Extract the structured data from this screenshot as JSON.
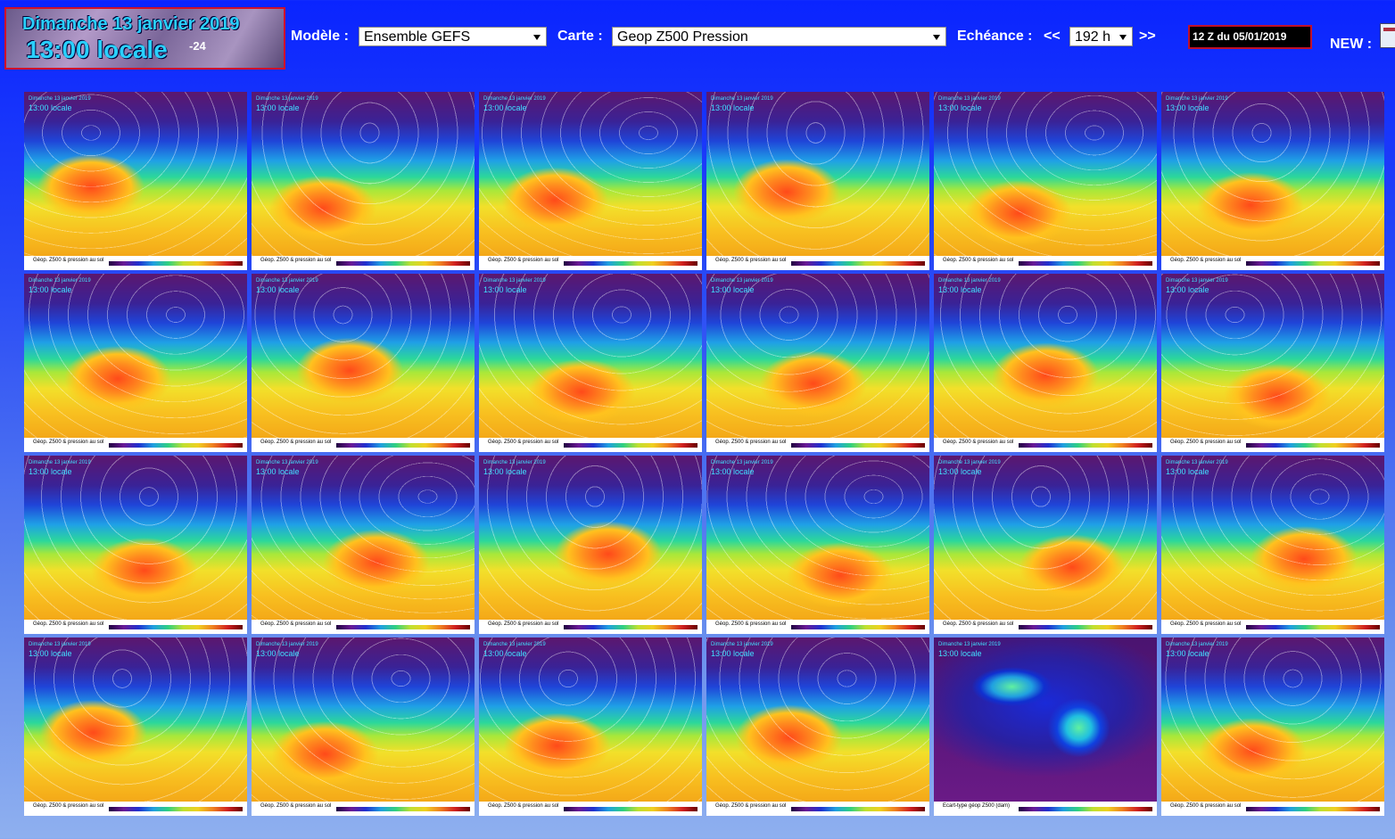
{
  "header": {
    "banner": {
      "date": "Dimanche 13 janvier 2019",
      "time": "13:00 locale",
      "offset": "-24"
    },
    "model_label": "Modèle :",
    "model_value": "Ensemble GEFS",
    "map_label": "Carte :",
    "map_value": "Geop Z500 Pression",
    "step_label": "Echéance :",
    "prev": "<<",
    "step_value": "192 h",
    "next": ">>",
    "run": "12 Z du 05/01/2019",
    "new_label": "NEW :"
  },
  "maps": [
    {
      "date": "Dimanche 13 janvier 2019",
      "time": "13:00 locale",
      "caption": "Géop. Z500 & pression au sol"
    },
    {
      "date": "Dimanche 13 janvier 2019",
      "time": "13:00 locale",
      "caption": "Géop. Z500 & pression au sol"
    },
    {
      "date": "Dimanche 13 janvier 2019",
      "time": "13:00 locale",
      "caption": "Géop. Z500 & pression au sol"
    },
    {
      "date": "Dimanche 13 janvier 2019",
      "time": "13:00 locale",
      "caption": "Géop. Z500 & pression au sol"
    },
    {
      "date": "Dimanche 13 janvier 2019",
      "time": "13:00 locale",
      "caption": "Géop. Z500 & pression au sol"
    },
    {
      "date": "Dimanche 13 janvier 2019",
      "time": "13:00 locale",
      "caption": "Géop. Z500 & pression au sol"
    },
    {
      "date": "Dimanche 13 janvier 2019",
      "time": "13:00 locale",
      "caption": "Géop. Z500 & pression au sol"
    },
    {
      "date": "Dimanche 13 janvier 2019",
      "time": "13:00 locale",
      "caption": "Géop. Z500 & pression au sol"
    },
    {
      "date": "Dimanche 13 janvier 2019",
      "time": "13:00 locale",
      "caption": "Géop. Z500 & pression au sol"
    },
    {
      "date": "Dimanche 13 janvier 2019",
      "time": "13:00 locale",
      "caption": "Géop. Z500 & pression au sol"
    },
    {
      "date": "Dimanche 13 janvier 2019",
      "time": "13:00 locale",
      "caption": "Géop. Z500 & pression au sol"
    },
    {
      "date": "Dimanche 13 janvier 2019",
      "time": "13:00 locale",
      "caption": "Géop. Z500 & pression au sol"
    },
    {
      "date": "Dimanche 13 janvier 2019",
      "time": "13:00 locale",
      "caption": "Géop. Z500 & pression au sol"
    },
    {
      "date": "Dimanche 13 janvier 2019",
      "time": "13:00 locale",
      "caption": "Géop. Z500 & pression au sol"
    },
    {
      "date": "Dimanche 13 janvier 2019",
      "time": "13:00 locale",
      "caption": "Géop. Z500 & pression au sol"
    },
    {
      "date": "Dimanche 13 janvier 2019",
      "time": "13:00 locale",
      "caption": "Géop. Z500 & pression au sol"
    },
    {
      "date": "Dimanche 13 janvier 2019",
      "time": "13:00 locale",
      "caption": "Géop. Z500 & pression au sol"
    },
    {
      "date": "Dimanche 13 janvier 2019",
      "time": "13:00 locale",
      "caption": "Géop. Z500 & pression au sol"
    },
    {
      "date": "Dimanche 13 janvier 2019",
      "time": "13:00 locale",
      "caption": "Géop. Z500 & pression au sol"
    },
    {
      "date": "Dimanche 13 janvier 2019",
      "time": "13:00 locale",
      "caption": "Géop. Z500 & pression au sol"
    },
    {
      "date": "Dimanche 13 janvier 2019",
      "time": "13:00 locale",
      "caption": "Géop. Z500 & pression au sol"
    },
    {
      "date": "Dimanche 13 janvier 2019",
      "time": "13:00 locale",
      "caption": "Géop. Z500 & pression au sol"
    },
    {
      "date": "Dimanche 13 janvier 2019",
      "time": "13:00 locale",
      "caption": "Ecart-type géop Z500 (dam)"
    },
    {
      "date": "Dimanche 13 janvier 2019",
      "time": "13:00 locale",
      "caption": "Géop. Z500 & pression au sol"
    }
  ]
}
